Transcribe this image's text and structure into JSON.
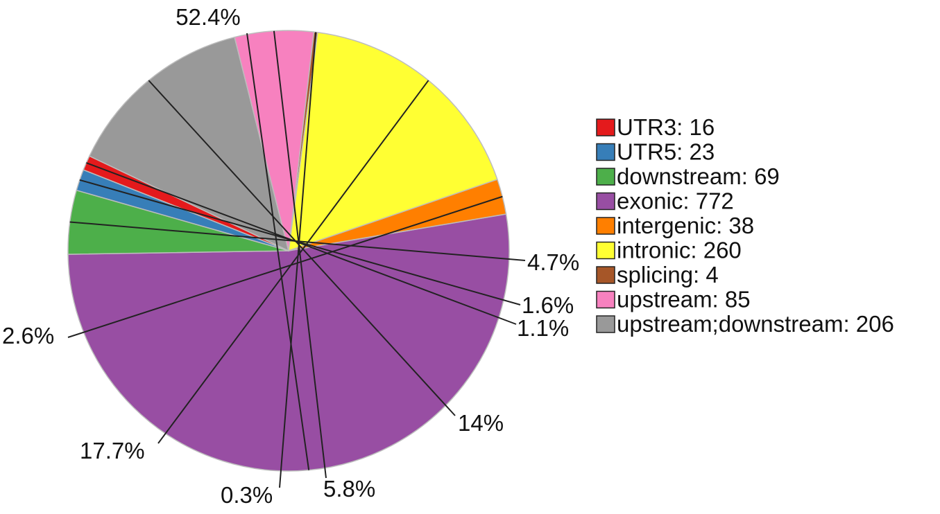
{
  "chart_data": {
    "type": "pie",
    "slices": [
      {
        "name": "exonic",
        "value": 772,
        "pct_label": "52.4%",
        "color": "#984ea3"
      },
      {
        "name": "downstream",
        "value": 69,
        "pct_label": "4.7%",
        "color": "#4daf4a"
      },
      {
        "name": "UTR5",
        "value": 23,
        "pct_label": "1.6%",
        "color": "#377eb8"
      },
      {
        "name": "UTR3",
        "value": 16,
        "pct_label": "1.1%",
        "color": "#e41a1c"
      },
      {
        "name": "upstream;downstream",
        "value": 206,
        "pct_label": "14%",
        "color": "#999999"
      },
      {
        "name": "upstream",
        "value": 85,
        "pct_label": "5.8%",
        "color": "#f781bf"
      },
      {
        "name": "splicing",
        "value": 4,
        "pct_label": "0.3%",
        "color": "#a65628"
      },
      {
        "name": "intronic",
        "value": 260,
        "pct_label": "17.7%",
        "color": "#ffff33"
      },
      {
        "name": "intergenic",
        "value": 38,
        "pct_label": "2.6%",
        "color": "#ff7f00"
      }
    ],
    "legend": [
      {
        "label": "UTR3: 16",
        "color": "#e41a1c"
      },
      {
        "label": "UTR5: 23",
        "color": "#377eb8"
      },
      {
        "label": "downstream: 69",
        "color": "#4daf4a"
      },
      {
        "label": "exonic: 772",
        "color": "#984ea3"
      },
      {
        "label": "intergenic: 38",
        "color": "#ff7f00"
      },
      {
        "label": "intronic: 260",
        "color": "#ffff33"
      },
      {
        "label": "splicing: 4",
        "color": "#a65628"
      },
      {
        "label": "upstream: 85",
        "color": "#f781bf"
      },
      {
        "label": "upstream;downstream: 206",
        "color": "#999999"
      }
    ],
    "legend_position": "right"
  }
}
